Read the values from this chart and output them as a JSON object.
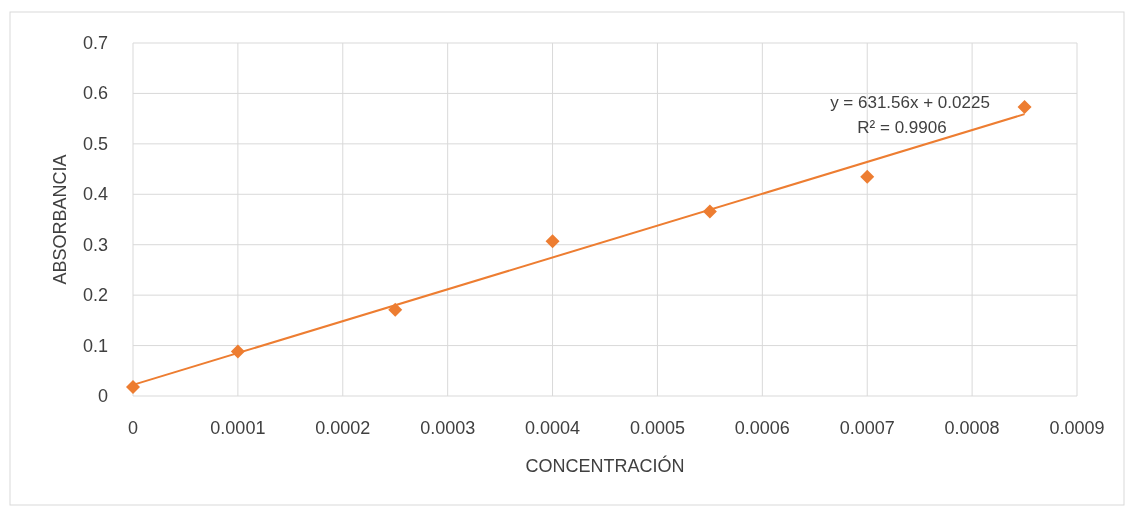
{
  "chart_data": {
    "type": "scatter",
    "xlabel": "CONCENTRACIÓN",
    "ylabel": "ABSORBANCIA",
    "series": [
      {
        "color": "#ed7d31",
        "marker": "diamond",
        "x": [
          0,
          0.0001,
          0.00025,
          0.0004,
          0.00055,
          0.0007,
          0.00085
        ],
        "values": [
          0.018,
          0.088,
          0.171,
          0.307,
          0.366,
          0.435,
          0.573
        ]
      },
      {
        "type": "line",
        "color": "#ed7d31",
        "line_style": "solid",
        "x": [
          0,
          0.00085
        ],
        "values": [
          0.022,
          0.559
        ]
      }
    ],
    "xlim": [
      0,
      0.0009
    ],
    "xticks": [
      0,
      0.0001,
      0.0002,
      0.0003,
      0.0004,
      0.0005,
      0.0006,
      0.0007,
      0.0008,
      0.0009
    ],
    "ylim": [
      0,
      0.7
    ],
    "yticks": [
      0,
      0.1,
      0.2,
      0.3,
      0.4,
      0.5,
      0.6,
      0.7
    ],
    "grid": true,
    "annotations": [
      "y = 631.56x + 0.0225",
      "R² = 0.9906"
    ]
  }
}
